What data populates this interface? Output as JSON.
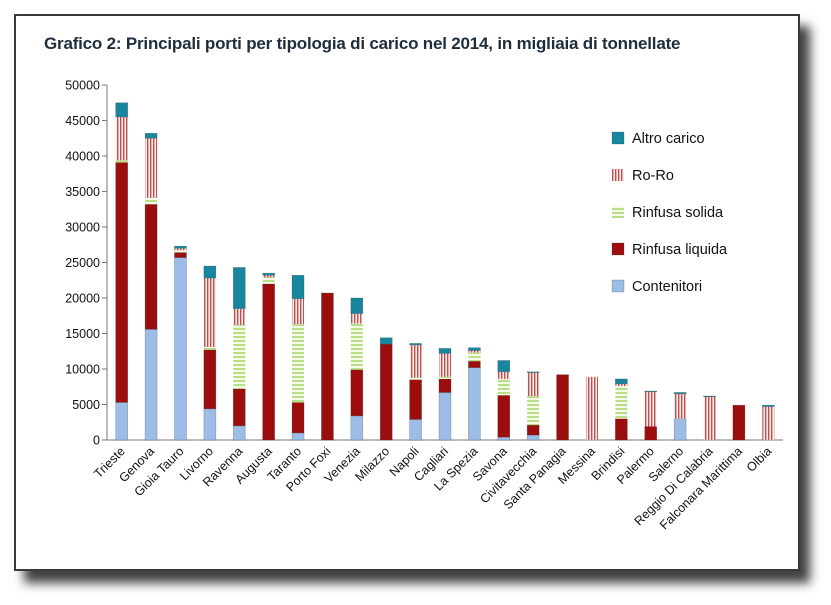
{
  "chart_data": {
    "type": "bar",
    "stacked": true,
    "title": "Grafico 2: Principali porti per tipologia di carico nel 2014, in migliaia di tonnellate",
    "xlabel": "",
    "ylabel": "",
    "ylim": [
      0,
      50000
    ],
    "yticks": [
      "0",
      "5000",
      "10000",
      "15000",
      "20000",
      "25000",
      "30000",
      "35000",
      "40000",
      "45000",
      "50000"
    ],
    "grid": false,
    "legend_position": "right",
    "categories": [
      "Trieste",
      "Genova",
      "Gioia Tauro",
      "Livorno",
      "Ravenna",
      "Augusta",
      "Taranto",
      "Porto Foxi",
      "Venezia",
      "Milazzo",
      "Napoli",
      "Cagliari",
      "La Spezia",
      "Savona",
      "Civitavecchia",
      "Santa Panagia",
      "Messina",
      "Brindisi",
      "Palermo",
      "Salerno",
      "Reggio Di Calabria",
      "Falconara Marittima",
      "Olbia"
    ],
    "series": [
      {
        "name": "Contenitori",
        "color": "#9dbde6",
        "pattern": "solid",
        "values": [
          5300,
          15600,
          25700,
          4400,
          2000,
          0,
          1000,
          0,
          3400,
          0,
          2900,
          6700,
          10200,
          400,
          700,
          0,
          0,
          0,
          0,
          3000,
          0,
          0,
          0
        ]
      },
      {
        "name": "Rinfusa liquida",
        "color": "#9c0e0e",
        "pattern": "solid",
        "values": [
          33800,
          17600,
          700,
          8300,
          5200,
          22000,
          4300,
          20700,
          6500,
          13500,
          5600,
          1900,
          900,
          5900,
          1400,
          9200,
          0,
          3000,
          1900,
          0,
          0,
          4900,
          0
        ]
      },
      {
        "name": "Rinfusa solida",
        "color": "#c7e69b",
        "pattern": "hstripes",
        "values": [
          300,
          900,
          300,
          400,
          9000,
          900,
          11000,
          0,
          6500,
          0,
          300,
          300,
          1200,
          2300,
          4100,
          0,
          0,
          4600,
          0,
          0,
          0,
          0,
          0
        ]
      },
      {
        "name": "Ro-Ro",
        "color": "#c0504d",
        "pattern": "vstripes",
        "values": [
          6100,
          8400,
          300,
          9700,
          2300,
          300,
          3600,
          0,
          1400,
          0,
          4600,
          3300,
          300,
          1000,
          3300,
          0,
          8900,
          300,
          4900,
          3500,
          6100,
          0,
          4700
        ]
      },
      {
        "name": "Altro carico",
        "color": "#17869e",
        "pattern": "solid",
        "values": [
          2000,
          700,
          300,
          1700,
          5800,
          300,
          3300,
          0,
          2200,
          900,
          200,
          700,
          400,
          1600,
          100,
          0,
          0,
          700,
          100,
          200,
          100,
          0,
          200
        ]
      }
    ],
    "legend_order": [
      "Altro carico",
      "Ro-Ro",
      "Rinfusa solida",
      "Rinfusa liquida",
      "Contenitori"
    ]
  }
}
